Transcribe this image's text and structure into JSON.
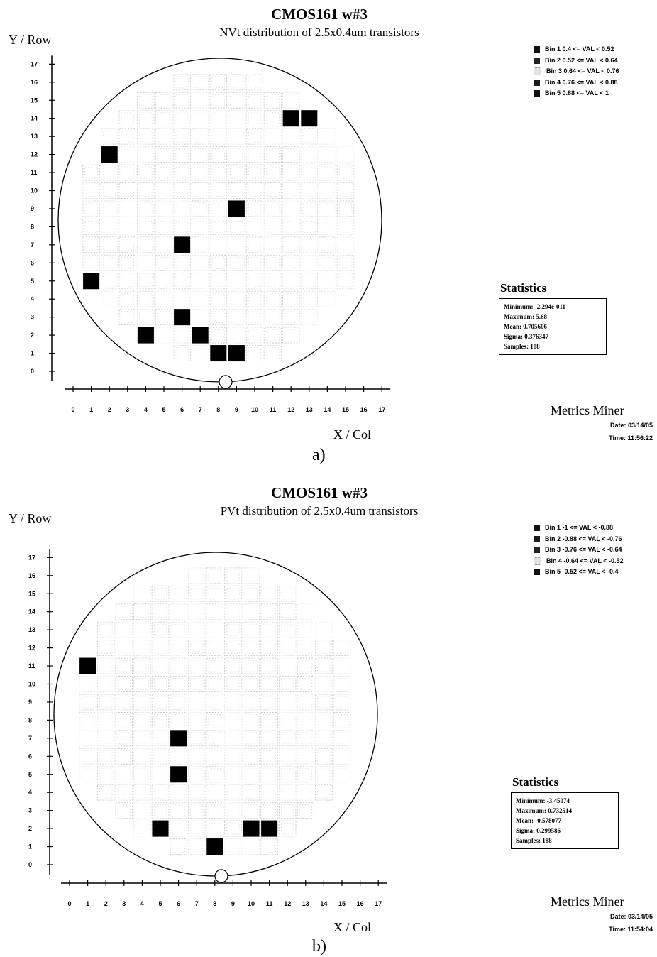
{
  "chart_data": [
    {
      "type": "heatmap",
      "title": "CMOS161 w#3",
      "subtitle": "NVt distribution of 2.5x0.4um transistors",
      "xlabel": "X / Col",
      "ylabel": "Y / Row",
      "caption": "a)",
      "x_ticks": [
        "0",
        "1",
        "2",
        "3",
        "4",
        "5",
        "6",
        "7",
        "8",
        "9",
        "10",
        "11",
        "12",
        "13",
        "14",
        "15",
        "16",
        "17"
      ],
      "y_ticks": [
        "0",
        "1",
        "2",
        "3",
        "4",
        "5",
        "6",
        "7",
        "8",
        "9",
        "10",
        "11",
        "12",
        "13",
        "14",
        "15",
        "16",
        "17"
      ],
      "xlim": [
        0,
        17
      ],
      "ylim": [
        0,
        17
      ],
      "legend": [
        {
          "label": "Bin 1  0.4 <= VAL < 0.52",
          "color": "#111111"
        },
        {
          "label": "Bin 2  0.52 <= VAL < 0.64",
          "color": "#222222"
        },
        {
          "label": "Bin 3  0.64 <= VAL < 0.76",
          "color": "#e2e2e2"
        },
        {
          "label": "Bin 4  0.76 <= VAL < 0.88",
          "color": "#1a1a1a"
        },
        {
          "label": "Bin 5  0.88 <= VAL < 1",
          "color": "#111111"
        }
      ],
      "highlighted_dies": [
        [
          12,
          14
        ],
        [
          13,
          14
        ],
        [
          2,
          12
        ],
        [
          9,
          9
        ],
        [
          6,
          7
        ],
        [
          1,
          5
        ],
        [
          6,
          3
        ],
        [
          4,
          2
        ],
        [
          7,
          2
        ],
        [
          8,
          1
        ],
        [
          9,
          1
        ]
      ],
      "statistics_title": "Statistics",
      "statistics": [
        {
          "label": "Minimum:",
          "value": "-2.294e-011"
        },
        {
          "label": "Maximum:",
          "value": "5.68"
        },
        {
          "label": "Mean:",
          "value": "0.705606"
        },
        {
          "label": "Sigma:",
          "value": "0.376347"
        },
        {
          "label": "Samples:",
          "value": "188"
        }
      ],
      "brand": "Metrics Miner",
      "date": "Date:  03/14/05",
      "time": "Time:  11:56:22"
    },
    {
      "type": "heatmap",
      "title": "CMOS161 w#3",
      "subtitle": "PVt distribution of 2.5x0.4um transistors",
      "xlabel": "X / Col",
      "ylabel": "Y / Row",
      "caption": "b)",
      "x_ticks": [
        "0",
        "1",
        "2",
        "3",
        "4",
        "5",
        "6",
        "7",
        "8",
        "9",
        "10",
        "11",
        "12",
        "13",
        "14",
        "15",
        "16",
        "17"
      ],
      "y_ticks": [
        "0",
        "1",
        "2",
        "3",
        "4",
        "5",
        "6",
        "7",
        "8",
        "9",
        "10",
        "11",
        "12",
        "13",
        "14",
        "15",
        "16",
        "17"
      ],
      "xlim": [
        0,
        17
      ],
      "ylim": [
        0,
        17
      ],
      "legend": [
        {
          "label": "Bin 1  -1 <= VAL < -0.88",
          "color": "#111111"
        },
        {
          "label": "Bin 2  -0.88 <= VAL < -0.76",
          "color": "#1a1a1a"
        },
        {
          "label": "Bin 3  -0.76 <= VAL < -0.64",
          "color": "#222222"
        },
        {
          "label": "Bin 4  -0.64 <= VAL < -0.52",
          "color": "#e2e2e2"
        },
        {
          "label": "Bin 5  -0.52 <= VAL < -0.4",
          "color": "#111111"
        }
      ],
      "highlighted_dies": [
        [
          1,
          11
        ],
        [
          6,
          7
        ],
        [
          6,
          5
        ],
        [
          5,
          2
        ],
        [
          10,
          2
        ],
        [
          11,
          2
        ],
        [
          8,
          1
        ]
      ],
      "statistics_title": "Statistics",
      "statistics": [
        {
          "label": "Minimum:",
          "value": "-3.45074"
        },
        {
          "label": "Maximum:",
          "value": "0.732514"
        },
        {
          "label": "Mean:",
          "value": "-0.578077"
        },
        {
          "label": "Sigma:",
          "value": "0.299586"
        },
        {
          "label": "Samples:",
          "value": "188"
        }
      ],
      "brand": "Metrics Miner",
      "date": "Date:  03/14/05",
      "time": "Time:  11:54:04"
    }
  ]
}
